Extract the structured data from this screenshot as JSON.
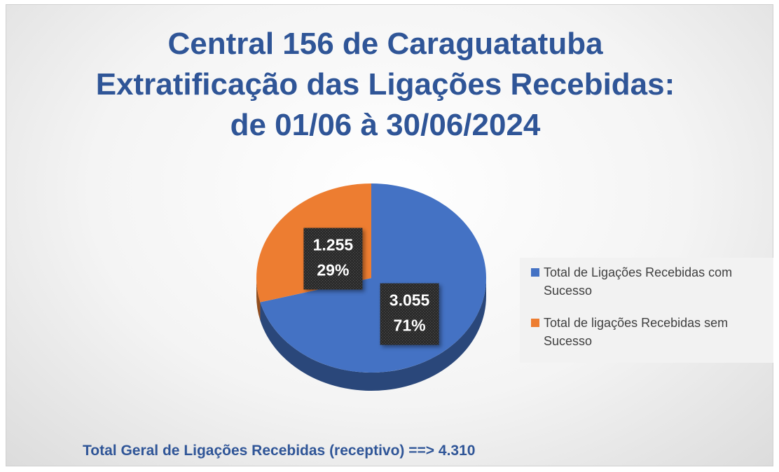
{
  "chart_data": {
    "type": "pie3d",
    "title": "Central 156 de Caraguatatuba Extratificação das Ligações Recebidas: de  01/06 à 30/06/2024",
    "categories": [
      "Total de Ligações Recebidas com Sucesso",
      "Total de ligações Recebidas sem Sucesso"
    ],
    "values": [
      3055,
      1255
    ],
    "value_labels": [
      "3.055",
      "1.255"
    ],
    "percent_labels": [
      "71%",
      "29%"
    ],
    "colors": [
      "#4472c4",
      "#ed7d31"
    ],
    "legend": "right",
    "footnote": "Total Geral de Ligações Recebidas (receptivo) ==>  4.310"
  }
}
